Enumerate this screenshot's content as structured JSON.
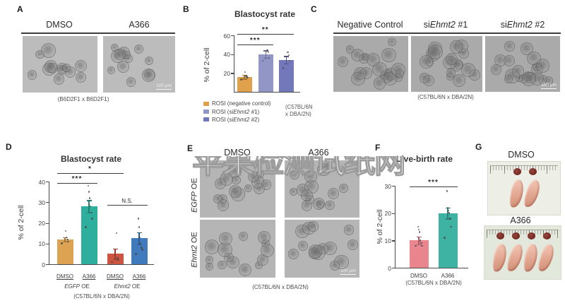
{
  "watermark": "苹果检测试纸网",
  "panels": {
    "A": {
      "label": "A",
      "col1": "DMSO",
      "col2": "A366",
      "caption": "(B6D2F1 x B6D2F1)",
      "scalebar": "100 μm"
    },
    "B": {
      "label": "B",
      "title": "Blastocyst rate",
      "ylabel": "% of 2-cell",
      "legend": [
        {
          "pre": "ROSI (negative control)",
          "it": "",
          "post": ""
        },
        {
          "pre": "ROSI (si",
          "it": "Ehmt2",
          "post": " #1)"
        },
        {
          "pre": "ROSI (si",
          "it": "Ehmt2",
          "post": " #2)"
        }
      ],
      "strain_line1": "(C57BL/6N",
      "strain_line2": "x DBA/2N)"
    },
    "C": {
      "label": "C",
      "col1": {
        "pre": "Negative Control",
        "it": "",
        "post": ""
      },
      "col2": {
        "pre": "si",
        "it": "Ehmt2",
        "post": " #1"
      },
      "col3": {
        "pre": "si",
        "it": "Ehmt2",
        "post": " #2"
      },
      "caption": "(C57BL/6N x DBA/2N)",
      "scalebar": "100 μm"
    },
    "D": {
      "label": "D",
      "title": "Blastocyst rate",
      "ylabel": "% of 2-cell",
      "caption": "(C57BL/6N x DBA/2N)"
    },
    "E": {
      "label": "E",
      "col1": "DMSO",
      "col2": "A366",
      "row1": {
        "it": "EGFP",
        "post": " OE"
      },
      "row2": {
        "it": "Ehmt2",
        "post": " OE"
      },
      "caption": "(C57BL/6N x DBA/2N)",
      "scalebar": "100 μm"
    },
    "F": {
      "label": "F",
      "title": "Live-birth rate",
      "ylabel": "% of 2-cell",
      "caption": "(C57BL/6N x DBA/2N)"
    },
    "G": {
      "label": "G",
      "col1": "DMSO",
      "col2": "A366"
    }
  },
  "chart_data": [
    {
      "id": "chart-b",
      "panel": "B",
      "type": "bar",
      "title": "Blastocyst rate",
      "ylabel": "% of 2-cell",
      "ylim": [
        0,
        60
      ],
      "yticks": [
        20,
        40,
        60
      ],
      "categories": [
        "ROSI (negative control)",
        "ROSI (siEhmt2 #1)",
        "ROSI (siEhmt2 #2)"
      ],
      "values": [
        16,
        40,
        34
      ],
      "errors": [
        2,
        4,
        4
      ],
      "points": [
        [
          13,
          15,
          16,
          17,
          21
        ],
        [
          33,
          36,
          42,
          44
        ],
        [
          25,
          33,
          39,
          42
        ]
      ],
      "colors": [
        "#DFA14B",
        "#9196C6",
        "#7278B9"
      ],
      "significance": [
        {
          "from": 0,
          "to": 1,
          "label": "***"
        },
        {
          "from": 0,
          "to": 2,
          "label": "**"
        }
      ],
      "strain": "(C57BL/6N x DBA/2N)",
      "legend_position": "bottom"
    },
    {
      "id": "chart-d",
      "panel": "D",
      "type": "bar",
      "title": "Blastocyst rate",
      "ylabel": "% of 2-cell",
      "ylim": [
        0,
        40
      ],
      "yticks": [
        0,
        10,
        20,
        30,
        40
      ],
      "categories": [
        "DMSO",
        "A366",
        "DMSO",
        "A366"
      ],
      "group_labels": [
        "EGFP OE",
        "EGFP OE",
        "Ehmt2 OE",
        "Ehmt2 OE"
      ],
      "groups": [
        {
          "it": "EGFP",
          "post": " OE"
        },
        {
          "it": "Ehmt2",
          "post": " OE"
        }
      ],
      "values": [
        12,
        28,
        5,
        12.5
      ],
      "errors": [
        1,
        3,
        2.5,
        3
      ],
      "points": [
        [
          10,
          11,
          12,
          13,
          16
        ],
        [
          18,
          22,
          25,
          28,
          32,
          35,
          38
        ],
        [
          1,
          2,
          3,
          15
        ],
        [
          5,
          7,
          8,
          10,
          13,
          18,
          22
        ]
      ],
      "colors": [
        "#DCA353",
        "#2EAF9D",
        "#CD5440",
        "#3F7ABD"
      ],
      "significance": [
        {
          "from": 0,
          "to": 1,
          "label": "***"
        },
        {
          "from": 0,
          "to": 2,
          "label": "*"
        },
        {
          "from": 2,
          "to": 3,
          "label": "N.S."
        }
      ],
      "strain": "(C57BL/6N x DBA/2N)"
    },
    {
      "id": "chart-f",
      "panel": "F",
      "type": "bar",
      "title": "Live-birth rate",
      "ylabel": "% of 2-cell",
      "ylim": [
        0,
        30
      ],
      "yticks": [
        0,
        10,
        20,
        30
      ],
      "categories": [
        "DMSO",
        "A366"
      ],
      "values": [
        10,
        20
      ],
      "errors": [
        1.5,
        2
      ],
      "points": [
        [
          8,
          8,
          9,
          10,
          13,
          14,
          15
        ],
        [
          11,
          15,
          18,
          20,
          21,
          22,
          28
        ]
      ],
      "colors": [
        "#E9868D",
        "#3EB3A4"
      ],
      "significance": [
        {
          "from": 0,
          "to": 1,
          "label": "***"
        }
      ],
      "strain": "(C57BL/6N x DBA/2N)"
    }
  ]
}
